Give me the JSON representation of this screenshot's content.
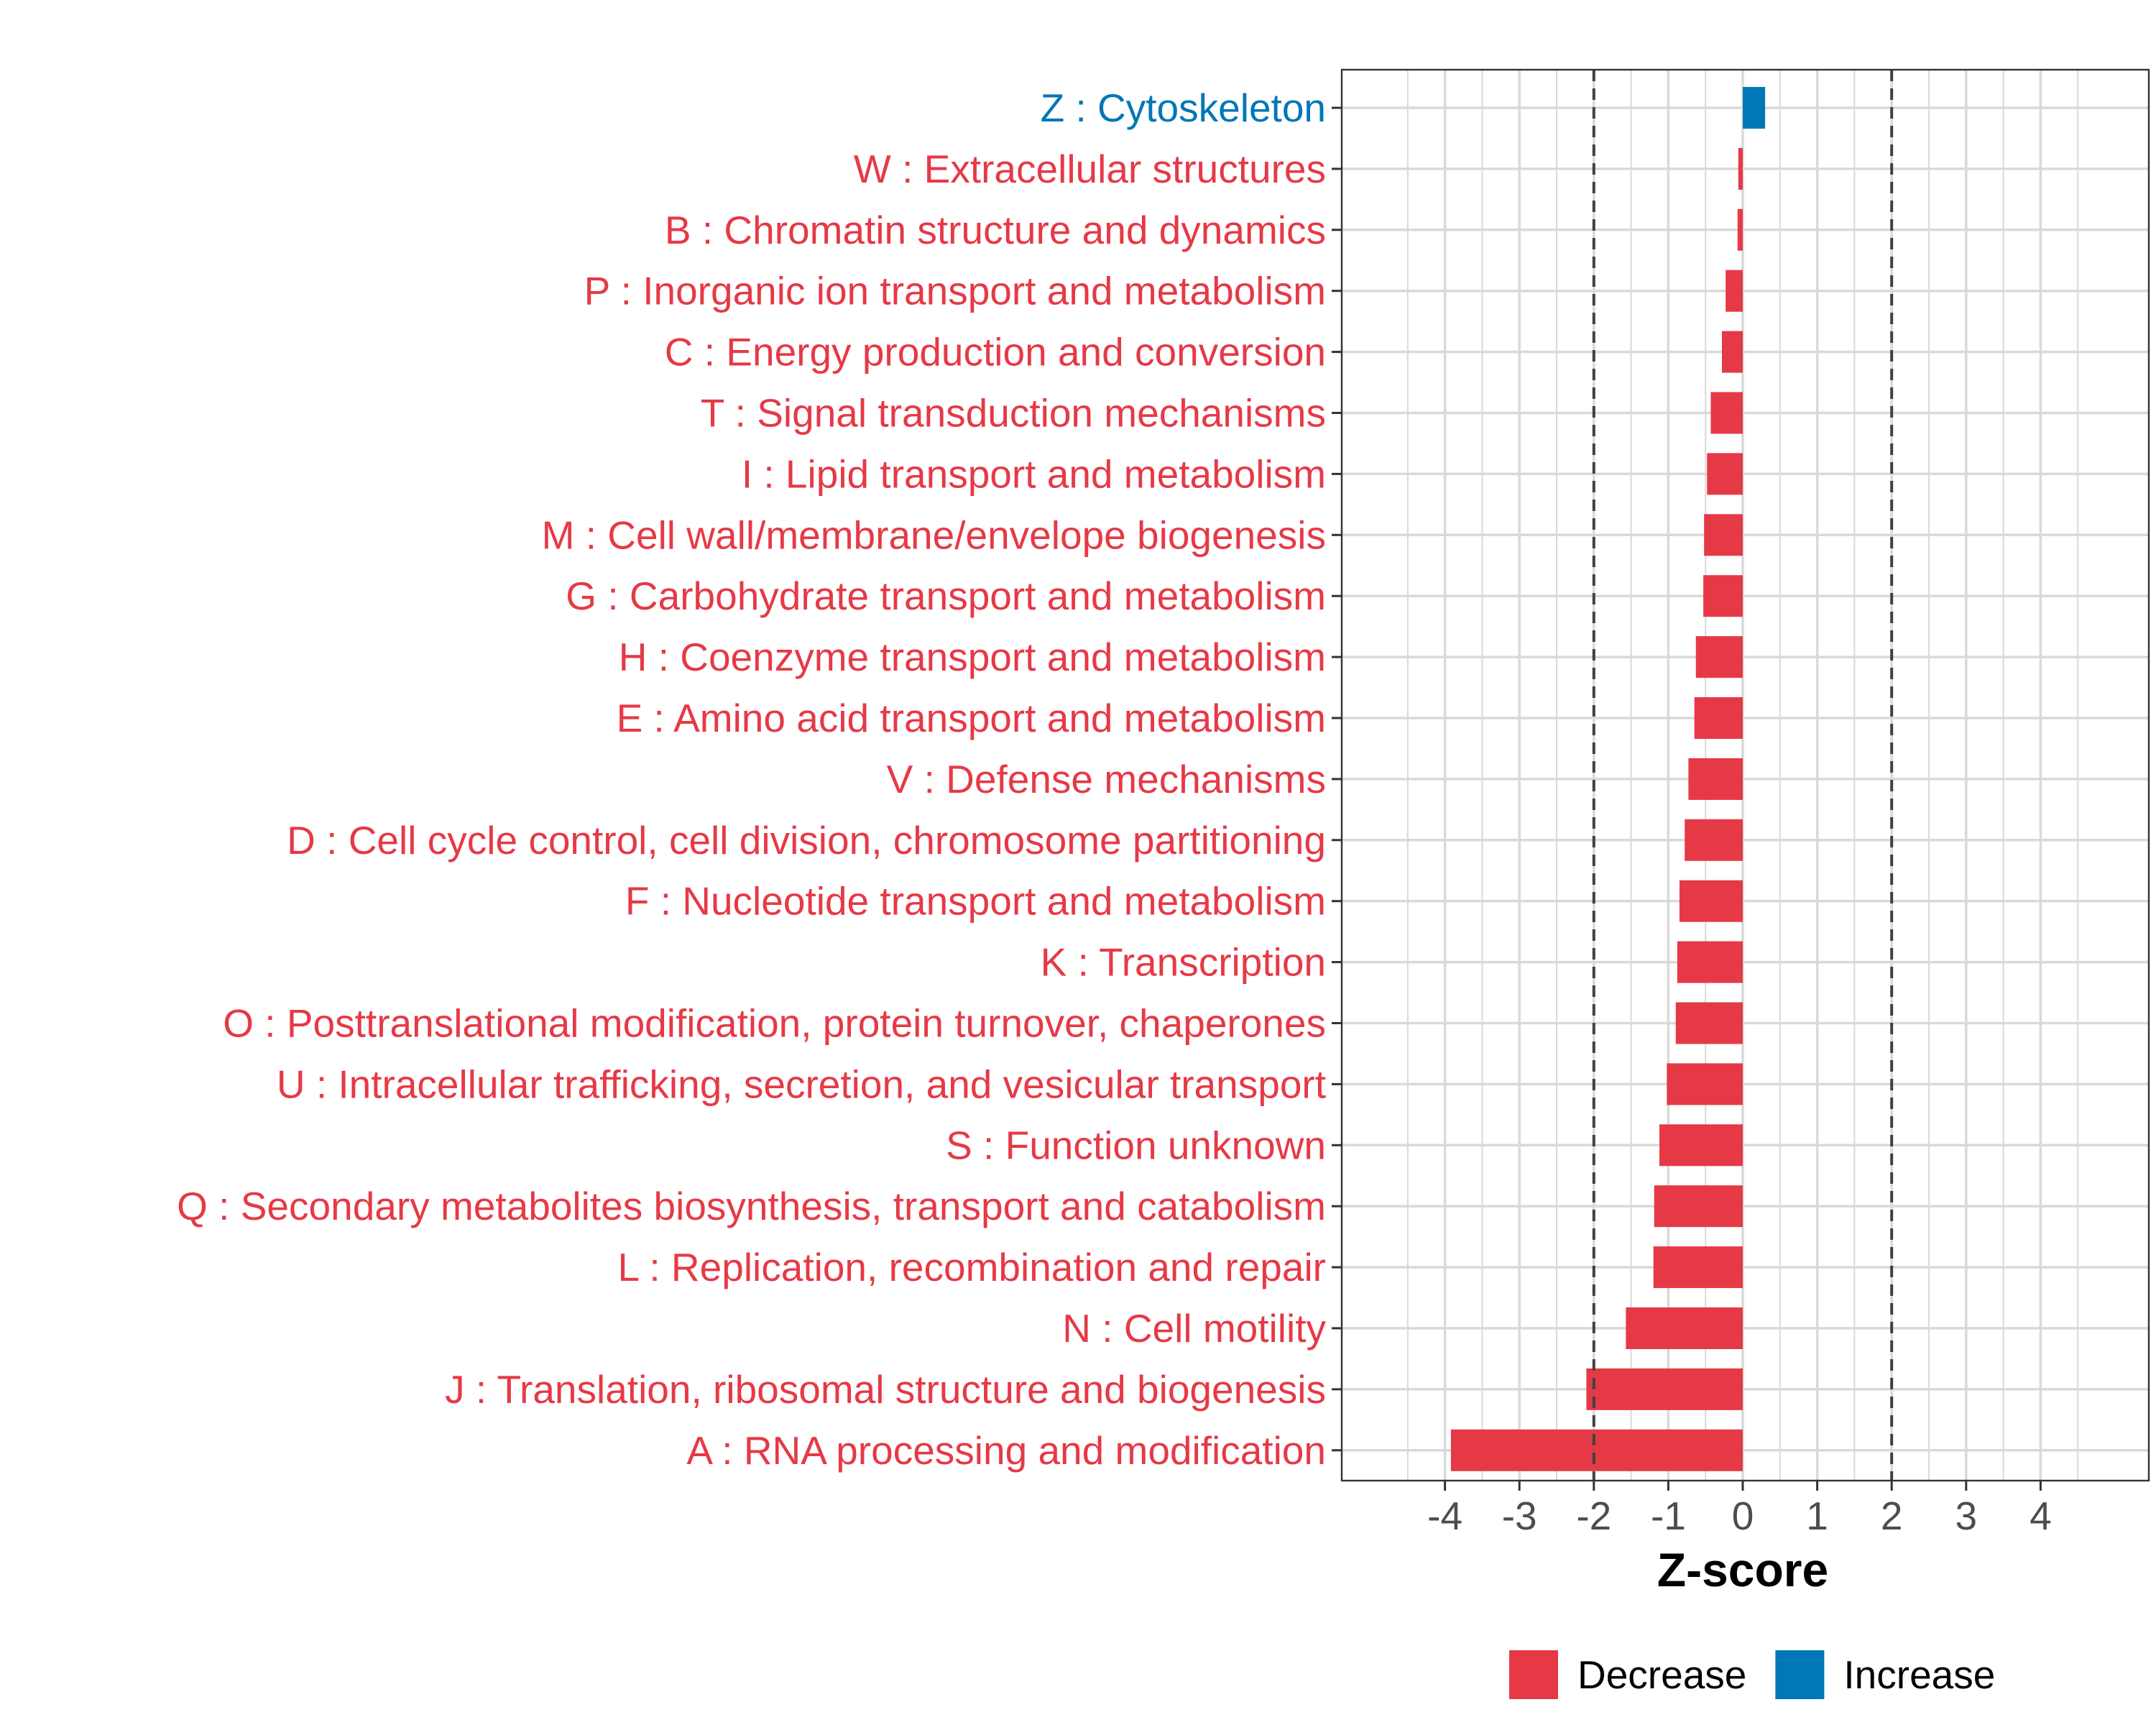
{
  "chart_data": {
    "type": "bar",
    "orientation": "horizontal",
    "title": "",
    "xlabel": "Z-score",
    "ylabel": "",
    "xlim": [
      -5.1,
      5.5
    ],
    "xticks": [
      -4,
      -3,
      -2,
      -1,
      0,
      1,
      2,
      3,
      4
    ],
    "xtick_labels": [
      "-4",
      "-3",
      "-2",
      "-1",
      "0",
      "1",
      "2",
      "3",
      "4"
    ],
    "reference_lines": [
      -2,
      2
    ],
    "grid": true,
    "categories": [
      "Z : Cytoskeleton",
      "W : Extracellular structures",
      "B : Chromatin structure and dynamics",
      "P : Inorganic ion transport and metabolism",
      "C : Energy production and conversion",
      "T : Signal transduction mechanisms",
      "I : Lipid transport and metabolism",
      "M : Cell wall/membrane/envelope biogenesis",
      "G : Carbohydrate transport and metabolism",
      "H : Coenzyme transport and metabolism",
      "E : Amino acid transport and metabolism",
      "V : Defense mechanisms",
      "D : Cell cycle control, cell division, chromosome partitioning",
      "F : Nucleotide transport and metabolism",
      "K : Transcription",
      "O : Posttranslational modification, protein turnover, chaperones",
      "U : Intracellular trafficking, secretion, and vesicular transport",
      "S : Function unknown",
      "Q : Secondary metabolites biosynthesis, transport and catabolism",
      "L : Replication, recombination and repair",
      "N : Cell motility",
      "J : Translation, ribosomal structure and biogenesis",
      "A : RNA processing and modification"
    ],
    "values": [
      0.3,
      -0.06,
      -0.07,
      -0.23,
      -0.28,
      -0.43,
      -0.48,
      -0.52,
      -0.53,
      -0.63,
      -0.65,
      -0.73,
      -0.78,
      -0.85,
      -0.88,
      -0.9,
      -1.02,
      -1.12,
      -1.19,
      -1.2,
      -1.57,
      -2.1,
      -3.92
    ],
    "legend": {
      "position": "bottom",
      "entries": [
        {
          "label": "Decrease",
          "color": "#E63946"
        },
        {
          "label": "Increase",
          "color": "#0077B6"
        }
      ]
    }
  },
  "colors": {
    "decrease": "#E63946",
    "increase": "#0077B6",
    "grid": "#d9d9d9",
    "axis_text": "#4d4d4d",
    "reference_line": "#404040"
  }
}
